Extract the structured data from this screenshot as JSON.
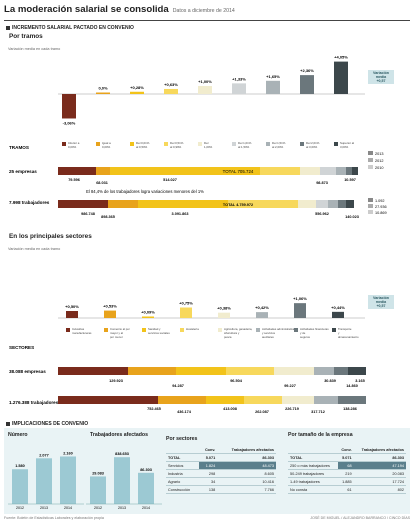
{
  "header": {
    "title": "La moderación salarial se consolida",
    "subtitle": "Datos a diciembre de 2014"
  },
  "sections": {
    "s1": "INCREMENTO SALARIAL PACTADO EN CONVENIO",
    "s1a": "Por tramos",
    "s2": "En los principales sectores",
    "s3": "IMPLICACIONES DE CONVENIO"
  },
  "axis_label": "Variación media en cada tramo",
  "callout": {
    "line1": "Variación",
    "line2": "media",
    "line3": "+0,57"
  },
  "callout_sectors": {
    "line1": "Variación",
    "line2": "media",
    "line3": "+0,57"
  },
  "chart_data": [
    {
      "type": "bar",
      "title": "Por tramos",
      "categories": [
        "Inferior a 0,00%",
        "Igual a 0,00%",
        "Del 0,01% al 0,50%",
        "Del 0,51% al 0,99%",
        "Del 1,00%",
        "Del 1,01% al 1,50%",
        "Del 1,51% al 2,00%",
        "Del 2,01% al 3,00%",
        "Superior al 3,00%"
      ],
      "values": [
        -3.06,
        0.0,
        0.28,
        0.63,
        1.0,
        1.33,
        1.65,
        2.36,
        4.05
      ],
      "labels": [
        "-3,06%",
        "0,0%",
        "+0,28%",
        "+0,63%",
        "+1,00%",
        "+1,33%",
        "+1,65%",
        "+2,36%",
        "+4,05%"
      ],
      "colors": [
        "#7a2b1c",
        "#e8a31c",
        "#f2c31a",
        "#f7d85c",
        "#f1ecce",
        "#d0d4d6",
        "#a9b2b6",
        "#6b777c",
        "#3c474b"
      ],
      "legend": [
        "2013",
        "2012",
        "2010"
      ]
    },
    {
      "type": "bar",
      "title": "En los principales sectores",
      "categories": [
        "Industrias manufactureras",
        "Comercio al por mayor y al por menor",
        "Sanidad y servicios sociales",
        "Hostelería",
        "Agricultura, ganadería, silvicultura y pesca",
        "Actividades administrativas y servicios auxiliares",
        "Actividades financieras y de seguros",
        "Transporte y almacenamiento"
      ],
      "values": [
        0.5,
        0.53,
        0.09,
        0.75,
        0.38,
        0.42,
        1.06,
        0.44
      ],
      "labels": [
        "+0,50%",
        "+0,53%",
        "+0,09%",
        "+0,75%",
        "+0,38%",
        "+0,42%",
        "+1,06%",
        "+0,44%"
      ],
      "colors": [
        "#7a2b1c",
        "#e8a31c",
        "#f2c31a",
        "#f7d85c",
        "#f1ecce",
        "#a9b2b6",
        "#6b777c",
        "#3c474b"
      ]
    }
  ],
  "tramos_table": {
    "row1_label": "TRAMOS",
    "row2_label": "25 empresas",
    "row3_label": "7.998 trabajadores",
    "empresas": [
      "79.596",
      "68.031",
      "514.027",
      "98.873",
      "10.597"
    ],
    "note": "El 84,4% de los trabajadores logra variaciones menores del 1%",
    "trabajadores": [
      "986.748",
      "898.365",
      "3.091.863",
      "TOTAL 4.759.972",
      "556.962",
      "140.023"
    ],
    "total_empresas": "TOTAL 705.724",
    "legend_empresas": [
      "1.092",
      "27.936",
      "10.869"
    ]
  },
  "sectores_table": {
    "row1_label": "SECTORES",
    "row2_label": "38.088 empresas",
    "row3_label": "1.276.388 trabajadores",
    "empresas": [
      "129.923",
      "94.287",
      "96.504",
      "99.227",
      "30.839",
      "14.860",
      "3.165"
    ],
    "trabajadores": [
      "752.465",
      "436.174",
      "413.008",
      "262.087",
      "226.719",
      "317.712",
      "138.286"
    ]
  },
  "implicaciones": {
    "title_left": "Número",
    "title_mid": "Trabajadores afectados",
    "years": [
      "2012",
      "2013",
      "2014"
    ],
    "num_values": [
      1.58,
      2.077,
      2.16
    ],
    "num_labels": [
      "1.580",
      "2.077",
      "2.160"
    ],
    "trab_values": [
      0.53,
      0.9,
      0.6
    ],
    "trab_labels": [
      "29.083",
      "838.653",
      "86.303"
    ],
    "sector_title": "Por sectores",
    "sector_head": [
      "",
      "Conv.",
      "Trabajadores afectados"
    ],
    "sector_rows": [
      [
        "TOTAL",
        "5.071",
        "86.303"
      ],
      [
        "Servicios",
        "1.824",
        "48.473"
      ],
      [
        "Industria",
        "298",
        "8.605"
      ],
      [
        "Agrario",
        "34",
        "10.416"
      ],
      [
        "Construcción",
        "138",
        "7.766"
      ]
    ],
    "empresa_title": "Por tamaño de la empresa",
    "empresa_head": [
      "",
      "Conv.",
      "Trabajadores afectados"
    ],
    "empresa_rows": [
      [
        "TOTAL",
        "5.071",
        "86.303"
      ],
      [
        "250 o más trabajadores",
        "68",
        "47.194"
      ],
      [
        "50-249 trabajadores",
        "219",
        "20.083"
      ],
      [
        "1-49 trabajadores",
        "1.885",
        "17.724"
      ],
      [
        "No consta",
        "61",
        "802"
      ]
    ]
  },
  "footer": {
    "left": "Fuente: Boletín de Estadísticas Laborales y elaboración propia",
    "right": "JOSÉ DE MIGUEL / ALEJANDRO BARRANCO / CINCO DÍAS"
  }
}
